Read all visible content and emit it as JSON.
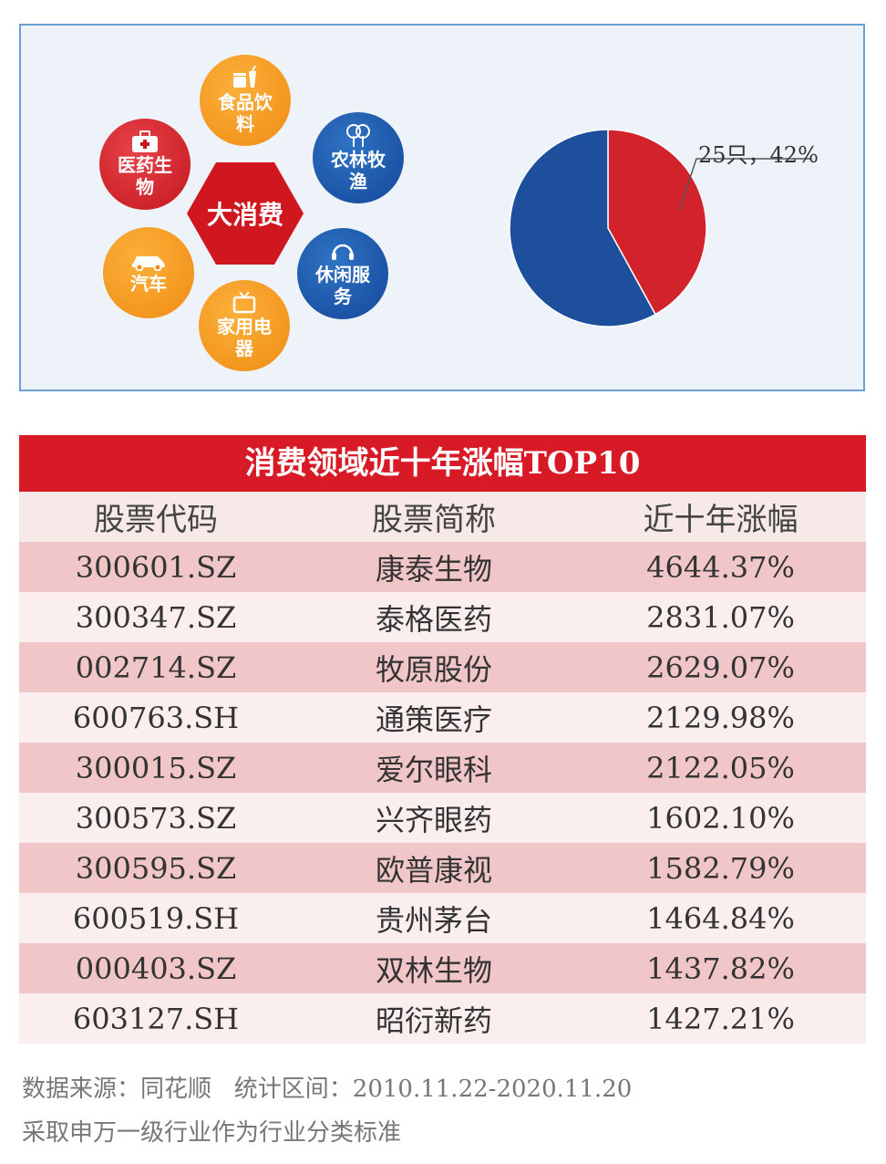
{
  "infographic": {
    "center_label": "大消费",
    "categories": [
      {
        "label": "食品饮料",
        "color": "#f5a01f",
        "icon": "food-drink-icon"
      },
      {
        "label": "农林牧渔",
        "color": "#1e5cb3",
        "icon": "tree-icon"
      },
      {
        "label": "休闲服务",
        "color": "#1e5cb3",
        "icon": "headset-icon"
      },
      {
        "label": "家用电器",
        "color": "#f5a01f",
        "icon": "tv-icon"
      },
      {
        "label": "汽车",
        "color": "#f5a01f",
        "icon": "car-icon"
      },
      {
        "label": "医药生物",
        "color": "#d0161e",
        "icon": "medical-kit-icon"
      }
    ]
  },
  "chart_data": {
    "type": "pie",
    "slices": [
      {
        "value": 42,
        "color": "#d2232c",
        "label": "25只，42%"
      },
      {
        "value": 58,
        "color": "#1d4f9c"
      }
    ]
  },
  "table": {
    "title": "消费领域近十年涨幅TOP10",
    "headers": [
      "股票代码",
      "股票简称",
      "近十年涨幅"
    ],
    "rows": [
      {
        "code": "300601.SZ",
        "name": "康泰生物",
        "gain": "4644.37%"
      },
      {
        "code": "300347.SZ",
        "name": "泰格医药",
        "gain": "2831.07%"
      },
      {
        "code": "002714.SZ",
        "name": "牧原股份",
        "gain": "2629.07%"
      },
      {
        "code": "600763.SH",
        "name": "通策医疗",
        "gain": "2129.98%"
      },
      {
        "code": "300015.SZ",
        "name": "爱尔眼科",
        "gain": "2122.05%"
      },
      {
        "code": "300573.SZ",
        "name": "兴齐眼药",
        "gain": "1602.10%"
      },
      {
        "code": "300595.SZ",
        "name": "欧普康视",
        "gain": "1582.79%"
      },
      {
        "code": "600519.SH",
        "name": "贵州茅台",
        "gain": "1464.84%"
      },
      {
        "code": "000403.SZ",
        "name": "双林生物",
        "gain": "1437.82%"
      },
      {
        "code": "603127.SH",
        "name": "昭衍新药",
        "gain": "1427.21%"
      }
    ]
  },
  "footer": {
    "source": "数据来源：同花顺   统计区间：2010.11.22-2020.11.20",
    "note": "采取申万一级行业作为行业分类标准"
  }
}
